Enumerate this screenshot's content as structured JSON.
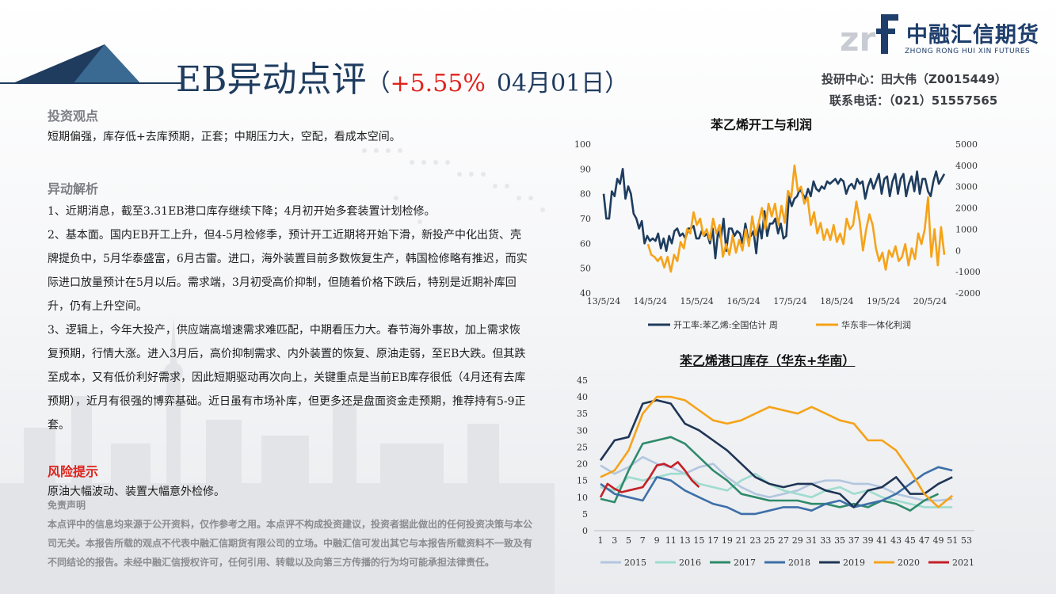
{
  "header": {
    "title_main": "EB异动点评",
    "title_open": "（",
    "change": "+5.55%",
    "date": "04月01日",
    "title_close": "）",
    "contact_line1": "投研中心：田大伟（Z0015449）",
    "contact_line2": "联系电话：（021）51557565"
  },
  "logo": {
    "cn": "中融汇信期货",
    "en": "ZHONG RONG HUI XIN FUTURES"
  },
  "colors": {
    "navy": "#1e3c5e",
    "orange": "#f5a31a",
    "red": "#e0231c"
  },
  "sections": {
    "view_title": "投资观点",
    "view_text": "短期偏强，库存低+去库预期，正套；中期压力大，空配，看成本空间。",
    "analysis_title": "异动解析",
    "analysis_paragraphs": [
      "1、近期消息，截至3.31EB港口库存继续下降；4月初开始多套装置计划检修。",
      "2、基本面。国内EB开工上升，但4-5月检修季，预计开工近期将开始下滑，新投产中化出货、壳牌提负中，5月华泰盛富，6月古雷。进口，海外装置目前多数恢复生产，韩国检修略有推迟，而实际进口放量预计在5月以后。需求端，3月初受高价抑制，但随着价格下跌后，特别是近期补库回升，仍有上升空间。",
      "3、逻辑上，今年大投产，供应端高增速需求难匹配，中期看压力大。春节海外事故，加上需求恢复预期，行情大涨。进入3月后，高价抑制需求、内外装置的恢复、原油走弱，至EB大跌。但其跌至成本，又有低价利好需求，因此短期驱动再次向上，关键重点是当前EB库存很低（4月还有去库预期），近月有很强的博弈基础。近日虽有市场补库，但更多还是盘面资金走预期，推荐持有5-9正套。"
    ],
    "risk_title": "风险提示",
    "risk_text": "原油大幅波动、装置大幅意外检修。",
    "disclaimer_title": "免责声明",
    "disclaimer_text": "本点评中的信息均来源于公开资料，仅作参考之用。本点评不构成投资建议，投资者据此做出的任何投资决策与本公司无关。本报告所载的观点不代表中融汇信期货有限公司的立场。中融汇信可发出其它与本报告所载资料不一致及有不同结论的报告。未经中融汇信授权许可，任何引用、转载以及向第三方传播的行为均可能承担法律责任。"
  },
  "chart_data": [
    {
      "type": "line",
      "title": "苯乙烯开工与利润",
      "x_ticks": [
        "13/5/24",
        "14/5/24",
        "15/5/24",
        "16/5/24",
        "17/5/24",
        "18/5/24",
        "19/5/24",
        "20/5/24"
      ],
      "y_left": {
        "min": 40,
        "max": 100,
        "ticks": [
          "40",
          "50",
          "60",
          "70",
          "80",
          "90",
          "100"
        ]
      },
      "y_right": {
        "min": -2000,
        "max": 5000,
        "ticks": [
          "-2000",
          "-1000",
          "0",
          "1000",
          "2000",
          "3000",
          "4000",
          "5000"
        ]
      },
      "series": [
        {
          "name": "开工率:苯乙烯:全国估计 周",
          "axis": "left",
          "color": "#1e3c5e",
          "values": [
            80,
            70,
            70,
            81,
            79,
            86,
            84,
            90,
            78,
            83,
            80,
            72,
            70,
            66,
            69,
            60,
            63,
            61,
            62,
            61,
            64,
            58,
            62,
            57,
            63,
            60,
            65,
            66,
            63,
            64,
            62,
            66,
            66,
            67,
            62,
            62,
            65,
            63,
            64,
            60,
            66,
            54,
            65,
            62,
            70,
            57,
            66,
            66,
            63,
            65,
            64,
            60,
            68,
            62,
            63,
            65,
            56,
            68,
            62,
            73,
            63,
            68,
            68,
            70,
            64,
            68,
            62,
            63,
            79,
            75,
            78,
            79,
            82,
            80,
            78,
            82,
            79,
            85,
            82,
            81,
            83,
            82,
            85,
            84,
            85,
            86,
            84,
            86,
            85,
            80,
            83,
            84,
            82,
            86,
            84,
            85,
            78,
            83,
            86,
            82,
            85,
            88,
            80,
            86,
            87,
            79,
            85,
            88,
            80,
            86,
            88,
            79,
            84,
            87,
            81,
            89,
            80,
            86,
            86,
            81,
            79,
            85,
            89,
            84,
            86,
            88
          ]
        },
        {
          "name": "华东非一体化利润",
          "axis": "right",
          "color": "#f5a31a",
          "values": [
            300,
            -200,
            -300,
            -500,
            -300,
            -800,
            -300,
            -1000,
            -200,
            -500,
            400,
            100,
            1000,
            800,
            1800,
            1200,
            1500,
            700,
            1000,
            500,
            1500,
            800,
            1200,
            -300,
            300,
            -200,
            700,
            -100,
            500,
            0,
            1000,
            200,
            1600,
            700,
            1300,
            2000,
            1000,
            2200,
            1600,
            2200,
            1200,
            2100,
            1300,
            2800,
            2500,
            4000,
            2800,
            3000,
            2200,
            2500,
            1200,
            1800,
            800,
            1300,
            500,
            1000,
            500,
            1200,
            400,
            800,
            300,
            1500,
            1000,
            1200,
            2300,
            1400,
            0,
            1000,
            1700,
            1200,
            100,
            -500,
            -100,
            -900,
            0,
            -300,
            200,
            -500,
            -300,
            300,
            -700,
            100,
            -400,
            800,
            300,
            1000,
            2500,
            -300,
            1000,
            -700,
            1100,
            -200
          ]
        }
      ]
    },
    {
      "type": "line",
      "title": "苯乙烯港口库存（华东+华南）",
      "x_ticks": [
        "1",
        "3",
        "5",
        "7",
        "9",
        "11",
        "13",
        "15",
        "17",
        "19",
        "21",
        "23",
        "25",
        "27",
        "29",
        "31",
        "33",
        "35",
        "37",
        "39",
        "41",
        "43",
        "45",
        "47",
        "49",
        "51",
        "53"
      ],
      "y": {
        "min": 0,
        "max": 45,
        "ticks": [
          "0",
          "5",
          "10",
          "15",
          "20",
          "25",
          "30",
          "35",
          "40",
          "45"
        ]
      },
      "series": [
        {
          "name": "2015",
          "color": "#b3c6df",
          "x": [
            1,
            3,
            5,
            7,
            9,
            11,
            13,
            15,
            17,
            19,
            21,
            23,
            25,
            27,
            29,
            31,
            33,
            35,
            37,
            39,
            41,
            43,
            45,
            47,
            49,
            51
          ],
          "values": [
            19.5,
            17,
            19,
            22,
            20,
            19,
            17,
            19,
            20,
            16,
            13,
            11,
            10,
            11,
            12,
            14,
            15,
            15,
            14,
            14,
            13,
            11,
            10,
            9,
            9,
            9.5
          ]
        },
        {
          "name": "2016",
          "color": "#9fdccf",
          "x": [
            1,
            3,
            5,
            7,
            9,
            11,
            13,
            15,
            17,
            19,
            21,
            23,
            25,
            27,
            29,
            31,
            33,
            35,
            37,
            39,
            41,
            43,
            45,
            47,
            49,
            51
          ],
          "values": [
            13,
            12,
            16,
            15,
            16,
            17,
            17,
            14,
            13,
            12,
            15,
            17,
            14,
            12,
            11,
            10,
            12,
            13,
            11,
            12,
            10,
            9,
            8,
            7,
            7,
            7
          ]
        },
        {
          "name": "2017",
          "color": "#2e8a6a",
          "x": [
            1,
            3,
            5,
            7,
            9,
            11,
            13,
            15,
            17,
            19,
            21,
            23,
            25,
            27,
            29,
            31,
            33,
            35,
            37,
            39,
            41,
            43,
            45,
            47,
            49
          ],
          "values": [
            9.5,
            8.5,
            18,
            26,
            27,
            28,
            26,
            22,
            18,
            15,
            11,
            10,
            9,
            9,
            9,
            8,
            8,
            7,
            8,
            7,
            9,
            8,
            6,
            9,
            11
          ]
        },
        {
          "name": "2018",
          "color": "#3e6fa8",
          "x": [
            1,
            3,
            5,
            7,
            9,
            11,
            13,
            15,
            17,
            19,
            21,
            23,
            25,
            27,
            29,
            31,
            33,
            35,
            37,
            39,
            41,
            43,
            45,
            47,
            49,
            51
          ],
          "values": [
            14,
            11,
            10,
            9,
            16,
            15,
            12,
            10,
            8,
            7,
            5,
            5,
            6,
            7,
            7,
            6,
            8,
            9,
            7,
            8,
            9,
            11,
            14,
            17,
            19,
            18
          ]
        },
        {
          "name": "2019",
          "color": "#1f3556",
          "x": [
            1,
            3,
            5,
            7,
            9,
            11,
            13,
            15,
            17,
            19,
            21,
            23,
            25,
            27,
            29,
            31,
            33,
            35,
            37,
            39,
            41,
            43,
            45,
            47,
            49,
            51
          ],
          "values": [
            21,
            27,
            28,
            38,
            39,
            38,
            32,
            30,
            27,
            24,
            20,
            16,
            14,
            13,
            14,
            14,
            12,
            11,
            7,
            12,
            13,
            16,
            11,
            11,
            14,
            16
          ]
        },
        {
          "name": "2020",
          "color": "#f5a31a",
          "x": [
            1,
            3,
            5,
            7,
            9,
            11,
            13,
            15,
            17,
            19,
            21,
            23,
            25,
            27,
            29,
            31,
            33,
            35,
            37,
            39,
            41,
            43,
            45,
            47,
            49,
            51
          ],
          "values": [
            16,
            18,
            24,
            35,
            40,
            40,
            39,
            36,
            33,
            32,
            33,
            35,
            37,
            36,
            35,
            37,
            35,
            33,
            32,
            27,
            27,
            24,
            18,
            11,
            7,
            10.5
          ]
        },
        {
          "name": "2021",
          "color": "#c42026",
          "x": [
            1,
            2,
            3,
            4,
            5,
            6,
            7,
            8,
            9,
            10,
            11,
            12,
            13,
            14,
            15
          ],
          "values": [
            10,
            14,
            12.5,
            11.5,
            12,
            12.5,
            13,
            16,
            19.5,
            20,
            19,
            20.5,
            18,
            15,
            13
          ]
        }
      ]
    }
  ]
}
